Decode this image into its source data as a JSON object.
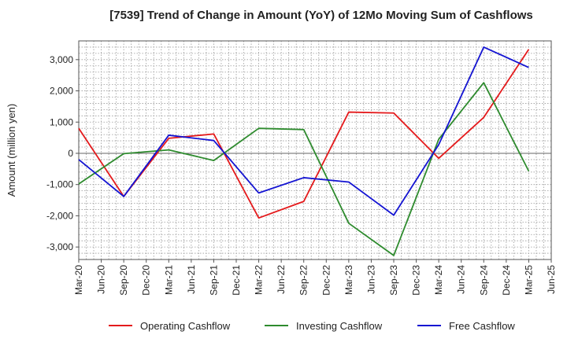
{
  "chart_data": {
    "type": "line",
    "title": "[7539]  Trend of Change in Amount (YoY) of 12Mo Moving Sum of Cashflows",
    "xlabel": "",
    "ylabel": "Amount (million yen)",
    "ylim": [
      -3400,
      3600
    ],
    "yticks": [
      3000,
      2000,
      1000,
      0,
      -1000,
      -2000,
      -3000
    ],
    "ytick_labels": [
      "3,000",
      "2,000",
      "1,000",
      "0",
      "-1,000",
      "-2,000",
      "-3,000"
    ],
    "x_labels": [
      "Mar-20",
      "Jun-20",
      "Sep-20",
      "Dec-20",
      "Mar-21",
      "Jun-21",
      "Sep-21",
      "Dec-21",
      "Mar-22",
      "Jun-22",
      "Sep-22",
      "Dec-22",
      "Mar-23",
      "Jun-23",
      "Sep-23",
      "Dec-23",
      "Mar-24",
      "Jun-24",
      "Sep-24",
      "Dec-24",
      "Mar-25",
      "Jun-25"
    ],
    "grid": true,
    "legend_position": "bottom",
    "series": [
      {
        "name": "Operating Cashflow",
        "color": "#e41a1c",
        "points": [
          {
            "x": "Mar-20",
            "y": 800
          },
          {
            "x": "Sep-20",
            "y": -1380
          },
          {
            "x": "Mar-21",
            "y": 480
          },
          {
            "x": "Sep-21",
            "y": 620
          },
          {
            "x": "Mar-22",
            "y": -2070
          },
          {
            "x": "Sep-22",
            "y": -1540
          },
          {
            "x": "Mar-23",
            "y": 1320
          },
          {
            "x": "Sep-23",
            "y": 1290
          },
          {
            "x": "Mar-24",
            "y": -160
          },
          {
            "x": "Sep-24",
            "y": 1150
          },
          {
            "x": "Mar-25",
            "y": 3330
          }
        ]
      },
      {
        "name": "Investing Cashflow",
        "color": "#2e8b2e",
        "points": [
          {
            "x": "Mar-20",
            "y": -980
          },
          {
            "x": "Sep-20",
            "y": -10
          },
          {
            "x": "Mar-21",
            "y": 110
          },
          {
            "x": "Sep-21",
            "y": -230
          },
          {
            "x": "Mar-22",
            "y": 800
          },
          {
            "x": "Sep-22",
            "y": 760
          },
          {
            "x": "Mar-23",
            "y": -2240
          },
          {
            "x": "Sep-23",
            "y": -3270
          },
          {
            "x": "Mar-24",
            "y": 450
          },
          {
            "x": "Sep-24",
            "y": 2260
          },
          {
            "x": "Mar-25",
            "y": -570
          }
        ]
      },
      {
        "name": "Free Cashflow",
        "color": "#1414d2",
        "points": [
          {
            "x": "Mar-20",
            "y": -200
          },
          {
            "x": "Sep-20",
            "y": -1380
          },
          {
            "x": "Mar-21",
            "y": 580
          },
          {
            "x": "Sep-21",
            "y": 410
          },
          {
            "x": "Mar-22",
            "y": -1270
          },
          {
            "x": "Sep-22",
            "y": -780
          },
          {
            "x": "Mar-23",
            "y": -920
          },
          {
            "x": "Sep-23",
            "y": -1980
          },
          {
            "x": "Mar-24",
            "y": 280
          },
          {
            "x": "Sep-24",
            "y": 3400
          },
          {
            "x": "Mar-25",
            "y": 2750
          }
        ]
      }
    ]
  }
}
